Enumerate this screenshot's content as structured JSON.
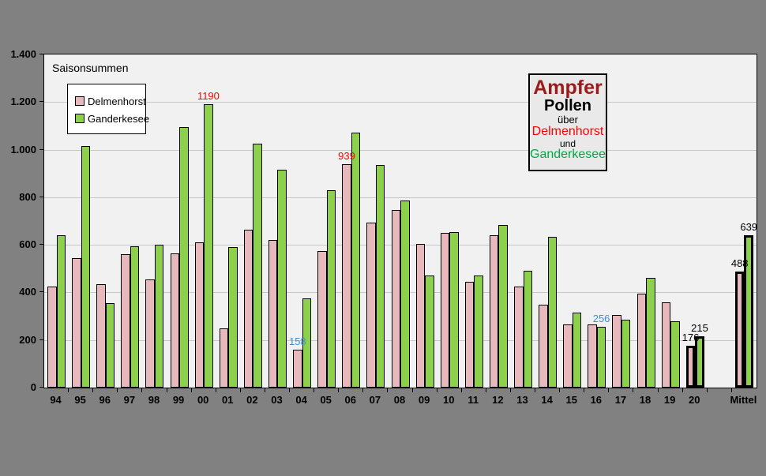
{
  "window": {
    "background_color": "#818181",
    "plot_background_color": "#f1f1f1",
    "gridline_color": "#c7c7c7"
  },
  "chart_data": {
    "type": "bar",
    "title": "Saisonsummen",
    "categories": [
      "94",
      "95",
      "96",
      "97",
      "98",
      "99",
      "00",
      "01",
      "02",
      "03",
      "04",
      "05",
      "06",
      "07",
      "08",
      "09",
      "10",
      "11",
      "12",
      "13",
      "14",
      "15",
      "16",
      "17",
      "18",
      "19",
      "20",
      "",
      "Mittel"
    ],
    "series": [
      {
        "name": "Delmenhorst",
        "color": "#e8b9bc",
        "values": [
          425,
          545,
          435,
          560,
          455,
          565,
          610,
          250,
          665,
          620,
          158,
          575,
          939,
          695,
          745,
          605,
          650,
          445,
          640,
          425,
          350,
          265,
          265,
          305,
          395,
          360,
          176,
          null,
          488
        ]
      },
      {
        "name": "Ganderkesee",
        "color": "#8dd04b",
        "values": [
          640,
          1015,
          355,
          595,
          600,
          1095,
          1190,
          590,
          1025,
          915,
          375,
          830,
          1070,
          935,
          785,
          470,
          655,
          470,
          685,
          490,
          635,
          315,
          256,
          285,
          460,
          280,
          215,
          null,
          639
        ]
      }
    ],
    "ylim": [
      0,
      1400
    ],
    "ytick_step": 200,
    "ytick_labels": [
      "0",
      "200",
      "400",
      "600",
      "800",
      "1.000",
      "1.200",
      "1.400"
    ],
    "grid": true,
    "legend_position": "top-left-inside",
    "highlighted_categories": [
      "20",
      "Mittel"
    ],
    "annotations": [
      {
        "cat_index": 6,
        "series": 1,
        "text": "1190",
        "color": "#ff0000"
      },
      {
        "cat_index": 12,
        "series": 0,
        "text": "939",
        "color": "#ff0000"
      },
      {
        "cat_index": 10,
        "series": 0,
        "text": "158",
        "color": "#3e8ede"
      },
      {
        "cat_index": 22,
        "series": 1,
        "text": "256",
        "color": "#3e8ede"
      },
      {
        "cat_index": 26,
        "series": 0,
        "text": "176",
        "color": "#000000"
      },
      {
        "cat_index": 26,
        "series": 1,
        "text": "215",
        "color": "#000000"
      },
      {
        "cat_index": 28,
        "series": 0,
        "text": "488",
        "color": "#000000"
      },
      {
        "cat_index": 28,
        "series": 1,
        "text": "639",
        "color": "#000000"
      }
    ]
  },
  "legend": {
    "items": [
      {
        "label": "Delmenhorst",
        "color": "#e8b9bc"
      },
      {
        "label": "Ganderkesee",
        "color": "#8dd04b"
      }
    ]
  },
  "infobox": {
    "lines": [
      {
        "text": "Ampfer",
        "color": "#9b1b1b",
        "size": 25,
        "bold": true
      },
      {
        "text": "Pollen",
        "color": "#000000",
        "size": 20,
        "bold": true
      },
      {
        "text": "über",
        "color": "#000000",
        "size": 13,
        "bold": false
      },
      {
        "text": "Delmenhorst",
        "color": "#ff0000",
        "size": 16,
        "bold": false
      },
      {
        "text": "und",
        "color": "#000000",
        "size": 12,
        "bold": false
      },
      {
        "text": "Ganderkesee",
        "color": "#00a843",
        "size": 16,
        "bold": false
      }
    ]
  }
}
